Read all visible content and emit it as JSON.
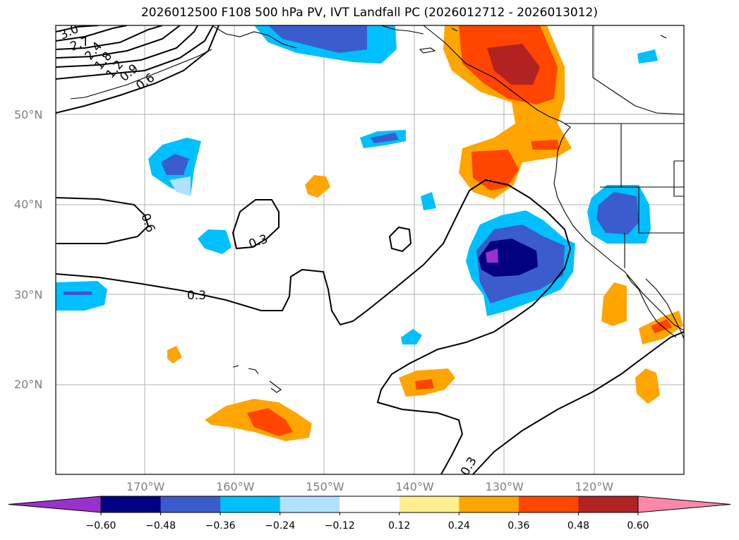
{
  "title": "2026012500 F108 500 hPa PV, IVT Landfall PC (2026012712 - 2026013012)",
  "lat_labels": [
    {
      "text": "50°N",
      "lat": 50
    },
    {
      "text": "40°N",
      "lat": 40
    },
    {
      "text": "30°N",
      "lat": 30
    },
    {
      "text": "20°N",
      "lat": 20
    }
  ],
  "lon_labels": [
    {
      "text": "170°W",
      "lon": -170
    },
    {
      "text": "160°W",
      "lon": -160
    },
    {
      "text": "150°W",
      "lon": -150
    },
    {
      "text": "140°W",
      "lon": -140
    },
    {
      "text": "130°W",
      "lon": -130
    },
    {
      "text": "120°W",
      "lon": -120
    }
  ],
  "contour_labels": [
    {
      "text": "3.0"
    },
    {
      "text": "2.7"
    },
    {
      "text": "2.4"
    },
    {
      "text": "1.8"
    },
    {
      "text": "1.2"
    },
    {
      "text": "0.9"
    },
    {
      "text": "0.6"
    },
    {
      "text": "0.6"
    },
    {
      "text": "0.3"
    },
    {
      "text": "0.3"
    },
    {
      "text": "0.3"
    }
  ],
  "colorbar": {
    "ticks": [
      "−0.60",
      "−0.48",
      "−0.36",
      "−0.24",
      "−0.12",
      "0.12",
      "0.24",
      "0.36",
      "0.48",
      "0.60"
    ],
    "colors": [
      "#9932cc",
      "#000080",
      "#3a5ccc",
      "#00bfff",
      "#b0e2ff",
      "#ffffff",
      "#fff08f",
      "#ffa500",
      "#ff4500",
      "#b22222",
      "#ff88aa"
    ]
  },
  "grid": true
}
